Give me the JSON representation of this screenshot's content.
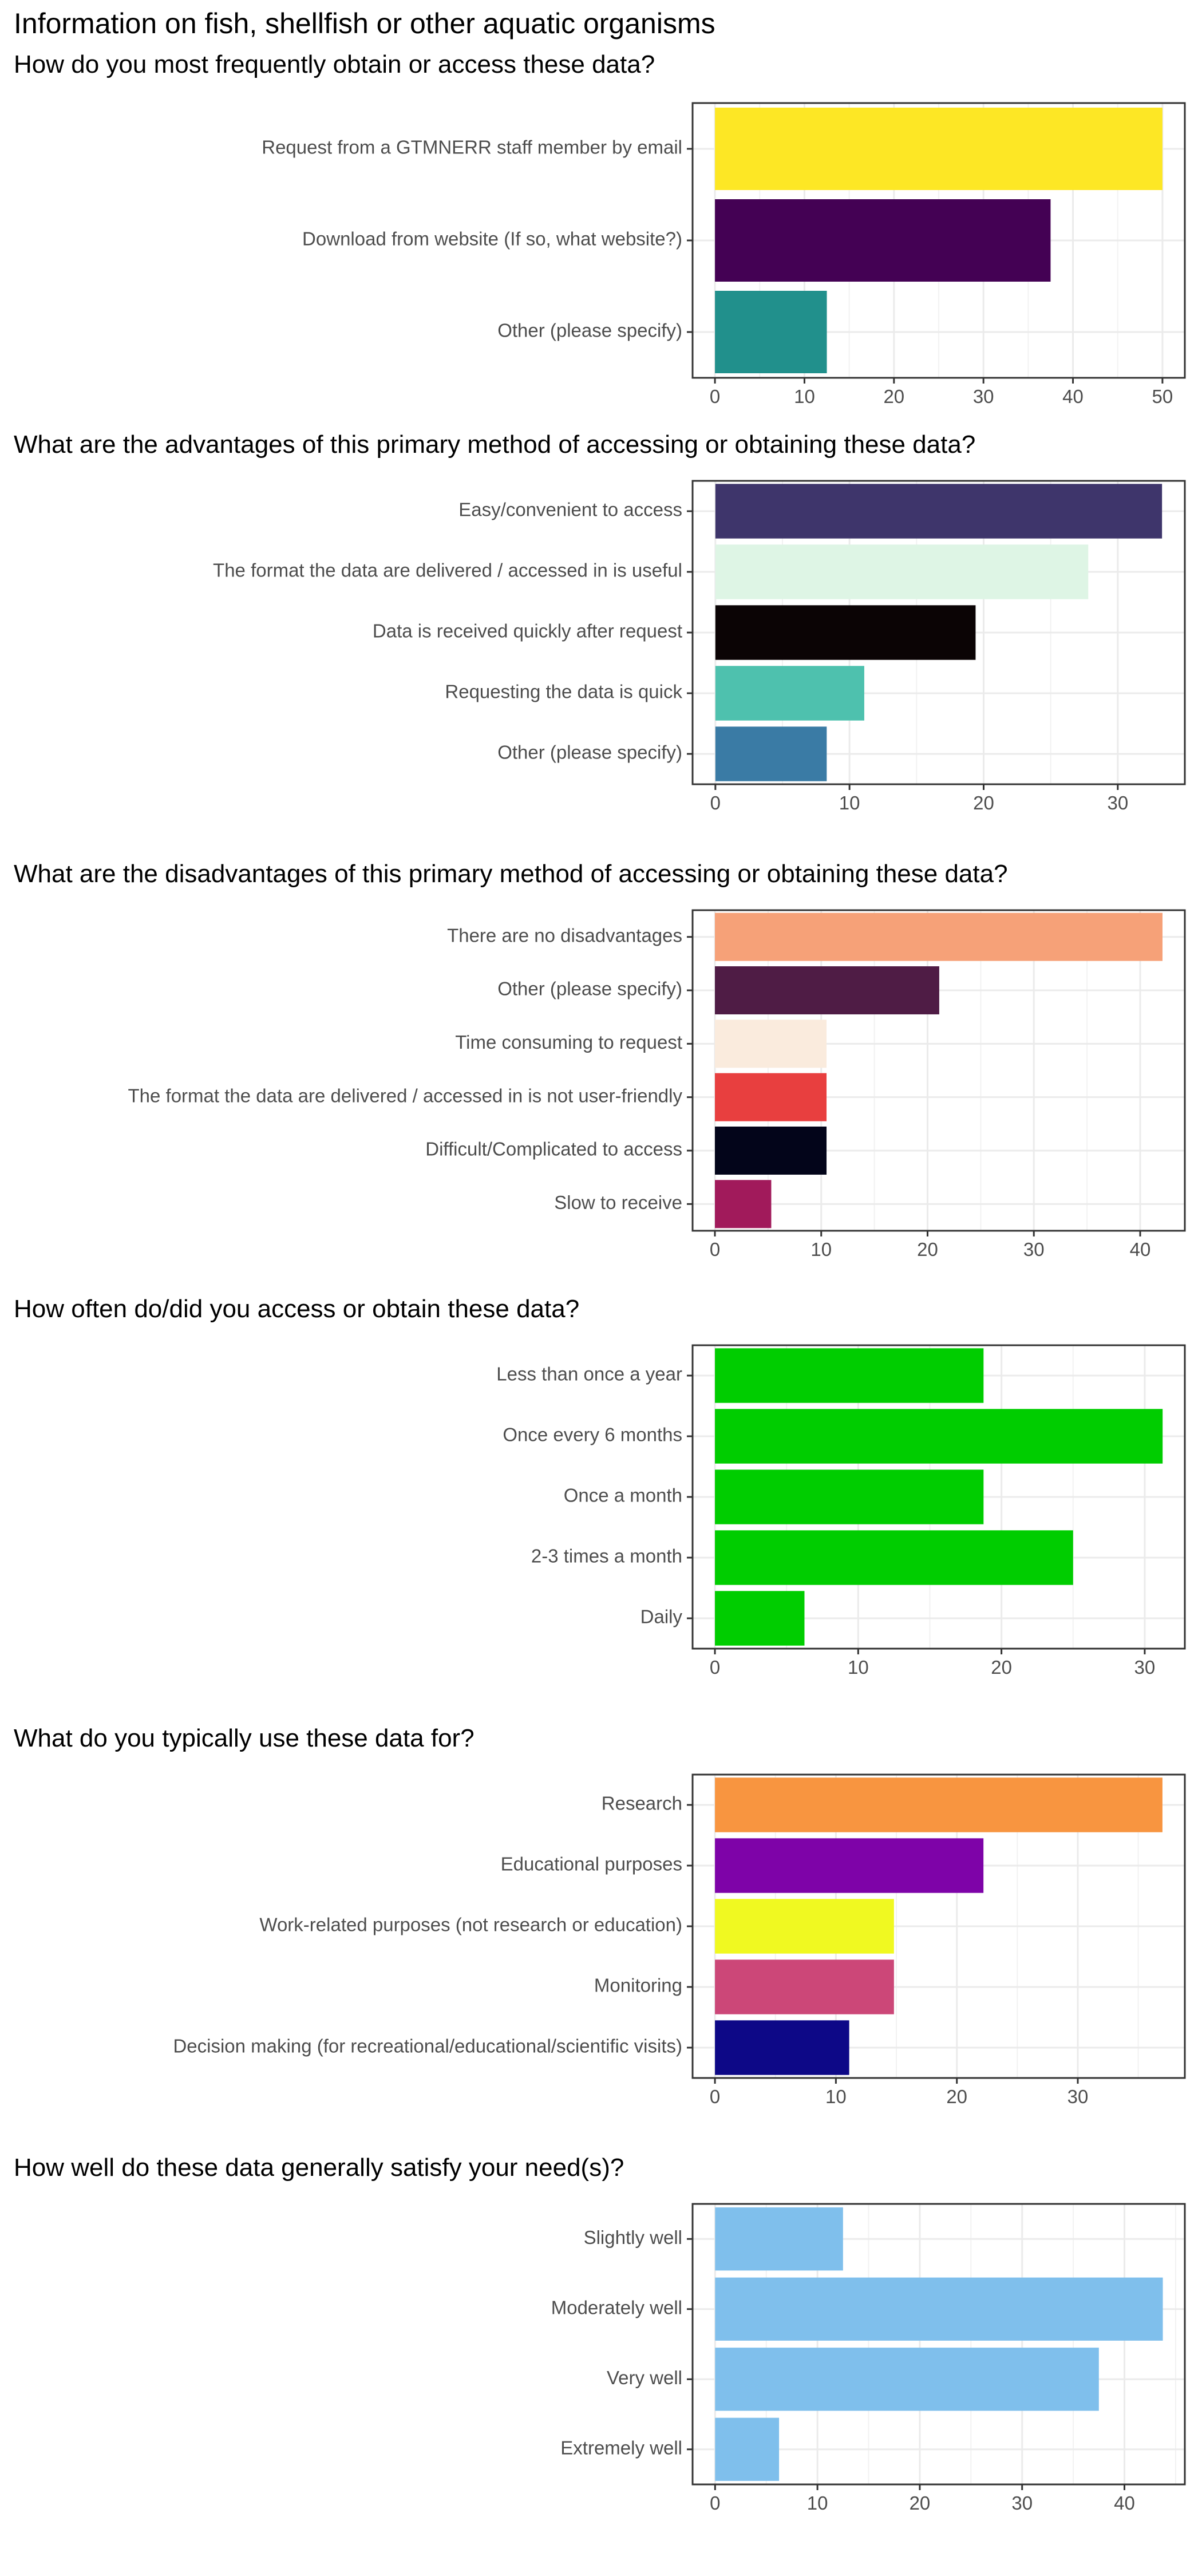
{
  "page_title": "Information on fish, shellfish or other aquatic organisms",
  "chart_data": [
    {
      "type": "bar",
      "orientation": "horizontal",
      "title": "How do you most frequently obtain or access these data?",
      "categories": [
        "Request from a GTMNERR staff member by email",
        "Download from website (If so, what website?)",
        "Other (please specify)"
      ],
      "values": [
        50,
        37.5,
        12.5
      ],
      "colors": [
        "#FDE725",
        "#440154",
        "#21908C"
      ],
      "xlim": [
        -2.5,
        52.5
      ],
      "ticks": [
        0,
        10,
        20,
        30,
        40,
        50
      ],
      "grid": true
    },
    {
      "type": "bar",
      "orientation": "horizontal",
      "title": "What are the advantages of this primary method of accessing or obtaining these data?",
      "categories": [
        "Easy/convenient to access",
        "The format the data are delivered / accessed in is useful",
        "Data is received quickly after request",
        "Requesting the data is quick",
        "Other (please specify)"
      ],
      "values": [
        33.3,
        27.8,
        19.4,
        11.1,
        8.3
      ],
      "colors": [
        "#3E356B",
        "#DEF5E5",
        "#0B0405",
        "#4EC1AE",
        "#3A7BA5"
      ],
      "xlim": [
        -1.7,
        35
      ],
      "ticks": [
        0,
        10,
        20,
        30
      ],
      "grid": true
    },
    {
      "type": "bar",
      "orientation": "horizontal",
      "title": "What are the disadvantages of this primary method of accessing or obtaining these data?",
      "categories": [
        "There are no disadvantages",
        "Other (please specify)",
        "Time consuming to request",
        "The format the data are delivered / accessed in is not user-friendly",
        "Difficult/Complicated to access",
        "Slow to receive"
      ],
      "values": [
        42.1,
        21.1,
        10.5,
        10.5,
        10.5,
        5.3
      ],
      "colors": [
        "#F6A178",
        "#4F1C45",
        "#FAEBDD",
        "#E83F3F",
        "#03051A",
        "#A11A5B"
      ],
      "xlim": [
        -2.1,
        44.2
      ],
      "ticks": [
        0,
        10,
        20,
        30,
        40
      ],
      "grid": true
    },
    {
      "type": "bar",
      "orientation": "horizontal",
      "title": "How often do/did you access or obtain these data?",
      "categories": [
        "Less than once a year",
        "Once every 6 months",
        "Once a month",
        "2-3 times a month",
        "Daily"
      ],
      "values": [
        18.75,
        31.25,
        18.75,
        25,
        6.25
      ],
      "colors": [
        "#00CD00",
        "#00CD00",
        "#00CD00",
        "#00CD00",
        "#00CD00"
      ],
      "xlim": [
        -1.56,
        32.8
      ],
      "ticks": [
        0,
        10,
        20,
        30
      ],
      "grid": true
    },
    {
      "type": "bar",
      "orientation": "horizontal",
      "title": "What do you typically use these data for?",
      "categories": [
        "Research",
        "Educational purposes",
        "Work-related purposes (not research or education)",
        "Monitoring",
        "Decision making (for recreational/educational/scientific visits)"
      ],
      "values": [
        37,
        22.2,
        14.8,
        14.8,
        11.1
      ],
      "colors": [
        "#F89540",
        "#7E03A8",
        "#F0F921",
        "#CC4778",
        "#0D0887"
      ],
      "xlim": [
        -1.85,
        38.85
      ],
      "ticks": [
        0,
        10,
        20,
        30
      ],
      "grid": true
    },
    {
      "type": "bar",
      "orientation": "horizontal",
      "title": "How well do these data generally satisfy your need(s)?",
      "categories": [
        "Slightly well",
        "Moderately well",
        "Very well",
        "Extremely well"
      ],
      "values": [
        12.5,
        43.75,
        37.5,
        6.25
      ],
      "colors": [
        "#7FBFEC",
        "#7FBFEC",
        "#7FBFEC",
        "#7FBFEC"
      ],
      "xlim": [
        -2.2,
        45.9
      ],
      "ticks": [
        0,
        10,
        20,
        30,
        40
      ],
      "grid": true
    }
  ]
}
